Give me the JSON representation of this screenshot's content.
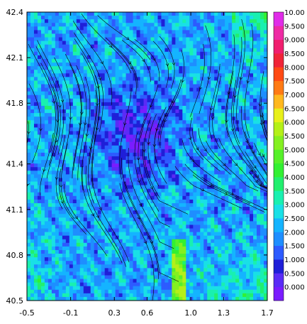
{
  "chart_data": {
    "type": "heatmap",
    "title": "",
    "xlabel": "",
    "ylabel": "",
    "xlim": [
      -0.5,
      1.7
    ],
    "ylim": [
      40.5,
      42.4
    ],
    "x_ticks": [
      "-0.5",
      "-0.1",
      "0.3",
      "0.6",
      "1.0",
      "1.3",
      "1.7"
    ],
    "x_tick_values": [
      -0.5,
      -0.1,
      0.3,
      0.6,
      1.0,
      1.3,
      1.7
    ],
    "y_ticks": [
      "40.5",
      "40.8",
      "41.1",
      "41.4",
      "41.8",
      "42.1",
      "42.4"
    ],
    "y_tick_values": [
      40.5,
      40.8,
      41.1,
      41.4,
      41.8,
      42.1,
      42.4
    ],
    "colorbar_labels": [
      "0.000",
      "0.500",
      "1.000",
      "1.500",
      "2.000",
      "2.500",
      "3.000",
      "3.500",
      "4.000",
      "4.500",
      "5.000",
      "5.500",
      "6.000",
      "6.500",
      "7.000",
      "7.500",
      "8.000",
      "8.500",
      "9.000",
      "9.500",
      "10.00"
    ],
    "colorbar_colors": [
      "#7a1cff",
      "#5a2cf6",
      "#1f1fd8",
      "#2d5bff",
      "#1e8eff",
      "#14b4ff",
      "#19e0e6",
      "#19f0b0",
      "#22ef6e",
      "#32f032",
      "#56f02a",
      "#84f020",
      "#b4f018",
      "#e8f01a",
      "#ffb81e",
      "#ff7a14",
      "#ff4a14",
      "#f02438",
      "#f01e6e",
      "#ee2aa4",
      "#e02ce8"
    ],
    "overlay": "streamlines",
    "grid": false,
    "legend_placement": "right"
  }
}
